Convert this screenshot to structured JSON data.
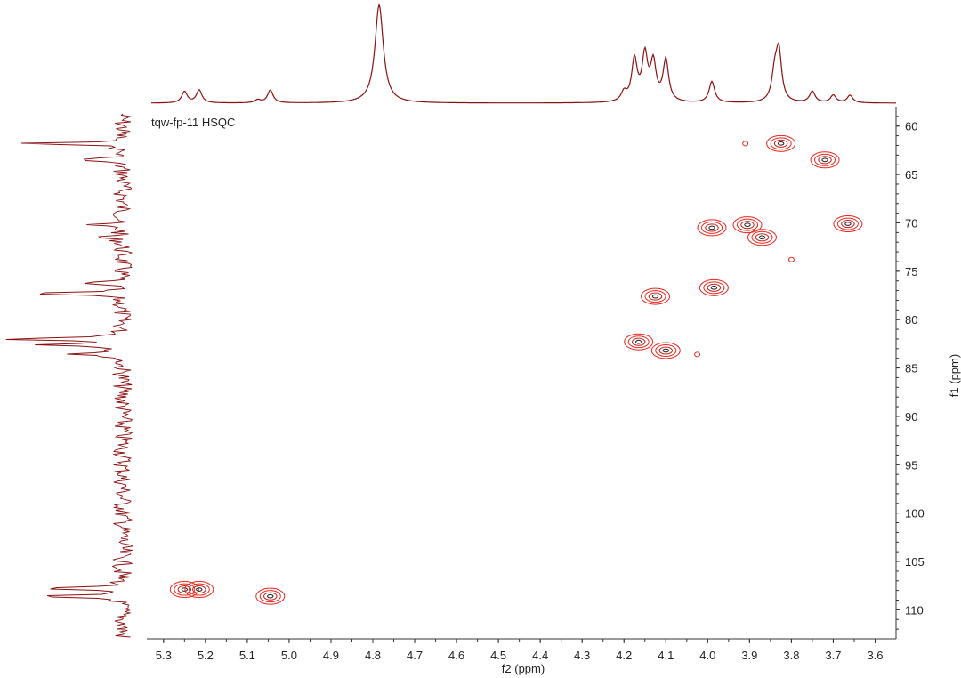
{
  "chart_data": {
    "type": "hsqc-2d-nmr",
    "spectrum_label": "tqw-fp-11 HSQC",
    "xlabel": "f2 (ppm)",
    "ylabel": "f1 (ppm)",
    "x_axis": {
      "min": 3.55,
      "max": 5.34,
      "reversed": true,
      "ticks": [
        5.3,
        5.2,
        5.1,
        5.0,
        4.9,
        4.8,
        4.7,
        4.6,
        4.5,
        4.4,
        4.3,
        4.2,
        4.1,
        4.0,
        3.9,
        3.8,
        3.7,
        3.6
      ],
      "tick_labels": [
        "5.3",
        "5.2",
        "5.1",
        "5.0",
        "4.9",
        "4.8",
        "4.7",
        "4.6",
        "4.5",
        "4.4",
        "4.3",
        "4.2",
        "4.1",
        "4.0",
        "3.9",
        "3.8",
        "3.7",
        "3.6"
      ]
    },
    "y_axis": {
      "min": 58,
      "max": 113,
      "position": "right",
      "ticks": [
        60,
        65,
        70,
        75,
        80,
        85,
        90,
        95,
        100,
        105,
        110
      ],
      "tick_labels": [
        "60",
        "65",
        "70",
        "75",
        "80",
        "85",
        "90",
        "95",
        "100",
        "105",
        "110"
      ]
    },
    "color": "#e8281e",
    "projection_color": "#8b1010",
    "cross_peaks": [
      {
        "x": 5.25,
        "y": 107.9
      },
      {
        "x": 5.215,
        "y": 107.9
      },
      {
        "x": 5.045,
        "y": 108.6
      },
      {
        "x": 3.825,
        "y": 61.8
      },
      {
        "x": 3.72,
        "y": 63.5
      },
      {
        "x": 3.99,
        "y": 70.5
      },
      {
        "x": 3.905,
        "y": 70.2
      },
      {
        "x": 3.87,
        "y": 71.5
      },
      {
        "x": 3.665,
        "y": 70.1
      },
      {
        "x": 3.985,
        "y": 76.7
      },
      {
        "x": 4.125,
        "y": 77.6
      },
      {
        "x": 4.165,
        "y": 82.3
      },
      {
        "x": 4.1,
        "y": 83.2
      },
      {
        "x": 3.91,
        "y": 61.8
      },
      {
        "x": 3.8,
        "y": 73.8
      },
      {
        "x": 4.025,
        "y": 83.6
      }
    ],
    "f2_projection_peaks": [
      {
        "ppm": 5.25,
        "height": 0.15
      },
      {
        "ppm": 5.215,
        "height": 0.17
      },
      {
        "ppm": 5.075,
        "height": 0.04
      },
      {
        "ppm": 5.045,
        "height": 0.17
      },
      {
        "ppm": 4.785,
        "height": 1.3
      },
      {
        "ppm": 4.175,
        "height": 0.55
      },
      {
        "ppm": 4.15,
        "height": 0.6
      },
      {
        "ppm": 4.13,
        "height": 0.5
      },
      {
        "ppm": 4.1,
        "height": 0.55
      },
      {
        "ppm": 4.2,
        "height": 0.12
      },
      {
        "ppm": 3.99,
        "height": 0.28
      },
      {
        "ppm": 3.83,
        "height": 0.65
      },
      {
        "ppm": 3.84,
        "height": 0.35
      },
      {
        "ppm": 3.75,
        "height": 0.15
      },
      {
        "ppm": 3.7,
        "height": 0.1
      },
      {
        "ppm": 3.66,
        "height": 0.1
      }
    ],
    "f1_projection_peaks": [
      {
        "ppm": 61.8,
        "height": 1.0
      },
      {
        "ppm": 63.5,
        "height": 0.55
      },
      {
        "ppm": 70.2,
        "height": 0.4
      },
      {
        "ppm": 71.5,
        "height": 0.3
      },
      {
        "ppm": 76.2,
        "height": 0.5
      },
      {
        "ppm": 77.3,
        "height": 1.15
      },
      {
        "ppm": 82.0,
        "height": 1.25
      },
      {
        "ppm": 82.6,
        "height": 0.8
      },
      {
        "ppm": 83.6,
        "height": 0.6
      },
      {
        "ppm": 107.8,
        "height": 0.95
      },
      {
        "ppm": 108.6,
        "height": 1.0
      }
    ]
  }
}
